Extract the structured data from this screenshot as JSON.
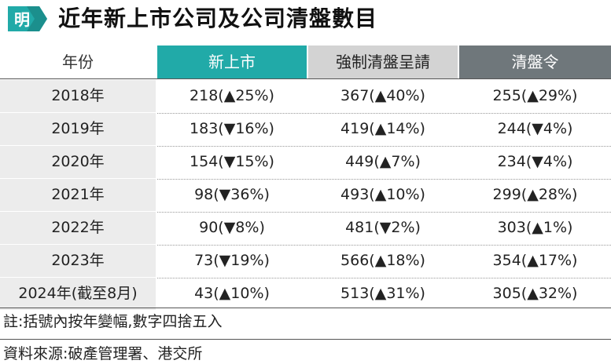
{
  "title": "近年新上市公司及公司清盤數目",
  "logo_text": "明",
  "headers": [
    "年份",
    "新上市",
    "強制清盤呈請",
    "清盤令"
  ],
  "colors": {
    "accent": "#21aaa8",
    "header_gray": "#d3d3d3",
    "header_dark": "#6f777b",
    "year_bg": "#ececec"
  },
  "rows": [
    {
      "year": "2018年",
      "ipo": "218(▲25%)",
      "petition": "367(▲40%)",
      "order": "255(▲29%)"
    },
    {
      "year": "2019年",
      "ipo": "183(▼16%)",
      "petition": "419(▲14%)",
      "order": "244(▼4%)"
    },
    {
      "year": "2020年",
      "ipo": "154(▼15%)",
      "petition": "449(▲7%)",
      "order": "234(▼4%)"
    },
    {
      "year": "2021年",
      "ipo": "98(▼36%)",
      "petition": "493(▲10%)",
      "order": "299(▲28%)"
    },
    {
      "year": "2022年",
      "ipo": "90(▼8%)",
      "petition": "481(▼2%)",
      "order": "303(▲1%)"
    },
    {
      "year": "2023年",
      "ipo": "73(▼19%)",
      "petition": "566(▲18%)",
      "order": "354(▲17%)"
    },
    {
      "year": "2024年(截至8月)",
      "ipo": "43(▲10%)",
      "petition": "513(▲31%)",
      "order": "305(▲32%)"
    }
  ],
  "note": "註:括號內按年變幅,數字四捨五入",
  "source": "資料來源:破產管理署、港交所"
}
